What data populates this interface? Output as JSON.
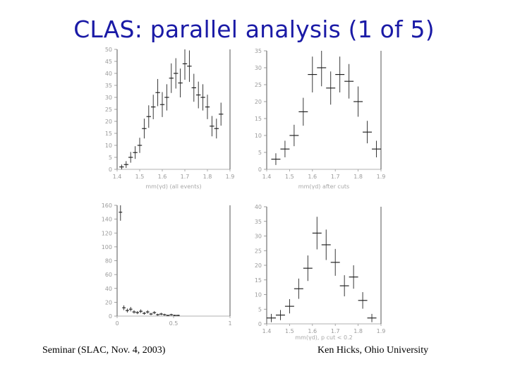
{
  "slide": {
    "title": "CLAS: parallel analysis (1 of 5)",
    "footer_left": "Seminar (SLAC, Nov. 4, 2003)",
    "footer_right": "Ken Hicks, Ohio University"
  },
  "chart_data": [
    {
      "type": "bar",
      "style": "histogram-steps",
      "xlabel": "mm(γd) (all events)",
      "xlim": [
        1.4,
        1.9
      ],
      "ylim": [
        0,
        50
      ],
      "xticks": [
        "1.4",
        "1.5",
        "1.6",
        "1.7",
        "1.8",
        "1.9"
      ],
      "yticks": [
        "0",
        "5",
        "10",
        "15",
        "20",
        "25",
        "30",
        "35",
        "40",
        "45",
        "50"
      ],
      "x": [
        1.42,
        1.44,
        1.46,
        1.48,
        1.5,
        1.52,
        1.54,
        1.56,
        1.58,
        1.6,
        1.62,
        1.64,
        1.66,
        1.68,
        1.7,
        1.72,
        1.74,
        1.76,
        1.78,
        1.8,
        1.82,
        1.84,
        1.86
      ],
      "values": [
        1,
        2,
        5,
        7,
        10,
        17,
        22,
        26,
        32,
        27,
        30,
        38,
        40,
        36,
        44,
        43,
        34,
        31,
        30,
        26,
        18,
        17,
        23
      ]
    },
    {
      "type": "bar",
      "style": "histogram-steps",
      "xlabel": "mm(γd) after cuts",
      "xlim": [
        1.4,
        1.9
      ],
      "ylim": [
        0,
        35
      ],
      "xticks": [
        "1.4",
        "1.5",
        "1.6",
        "1.7",
        "1.8",
        "1.9"
      ],
      "yticks": [
        "0",
        "5",
        "10",
        "15",
        "20",
        "25",
        "30",
        "35"
      ],
      "x": [
        1.44,
        1.48,
        1.52,
        1.56,
        1.6,
        1.64,
        1.68,
        1.72,
        1.76,
        1.8,
        1.84,
        1.88
      ],
      "values": [
        3,
        6,
        10,
        17,
        28,
        30,
        24,
        28,
        26,
        20,
        11,
        6
      ]
    },
    {
      "type": "bar",
      "style": "histogram-steps",
      "xlabel": "",
      "xlim": [
        0,
        1
      ],
      "ylim": [
        0,
        160
      ],
      "xticks": [
        "0",
        "0.5",
        "1"
      ],
      "yticks": [
        "0",
        "20",
        "40",
        "60",
        "80",
        "100",
        "120",
        "140",
        "160"
      ],
      "x": [
        0.03,
        0.06,
        0.09,
        0.12,
        0.15,
        0.18,
        0.21,
        0.24,
        0.27,
        0.3,
        0.33,
        0.36,
        0.39,
        0.42,
        0.45,
        0.48,
        0.51,
        0.54
      ],
      "values": [
        150,
        12,
        8,
        10,
        6,
        5,
        7,
        4,
        6,
        3,
        5,
        2,
        3,
        2,
        1,
        2,
        1,
        1
      ]
    },
    {
      "type": "bar",
      "style": "histogram-steps",
      "xlabel": "mm(γd), p cut < 0.2",
      "xlim": [
        1.4,
        1.9
      ],
      "ylim": [
        0,
        40
      ],
      "xticks": [
        "1.4",
        "1.5",
        "1.6",
        "1.7",
        "1.8",
        "1.9"
      ],
      "yticks": [
        "0",
        "5",
        "10",
        "15",
        "20",
        "25",
        "30",
        "35",
        "40"
      ],
      "x": [
        1.42,
        1.46,
        1.5,
        1.54,
        1.58,
        1.62,
        1.66,
        1.7,
        1.74,
        1.78,
        1.82,
        1.86
      ],
      "values": [
        2,
        3,
        6,
        12,
        19,
        31,
        27,
        21,
        13,
        16,
        8,
        2
      ]
    }
  ]
}
